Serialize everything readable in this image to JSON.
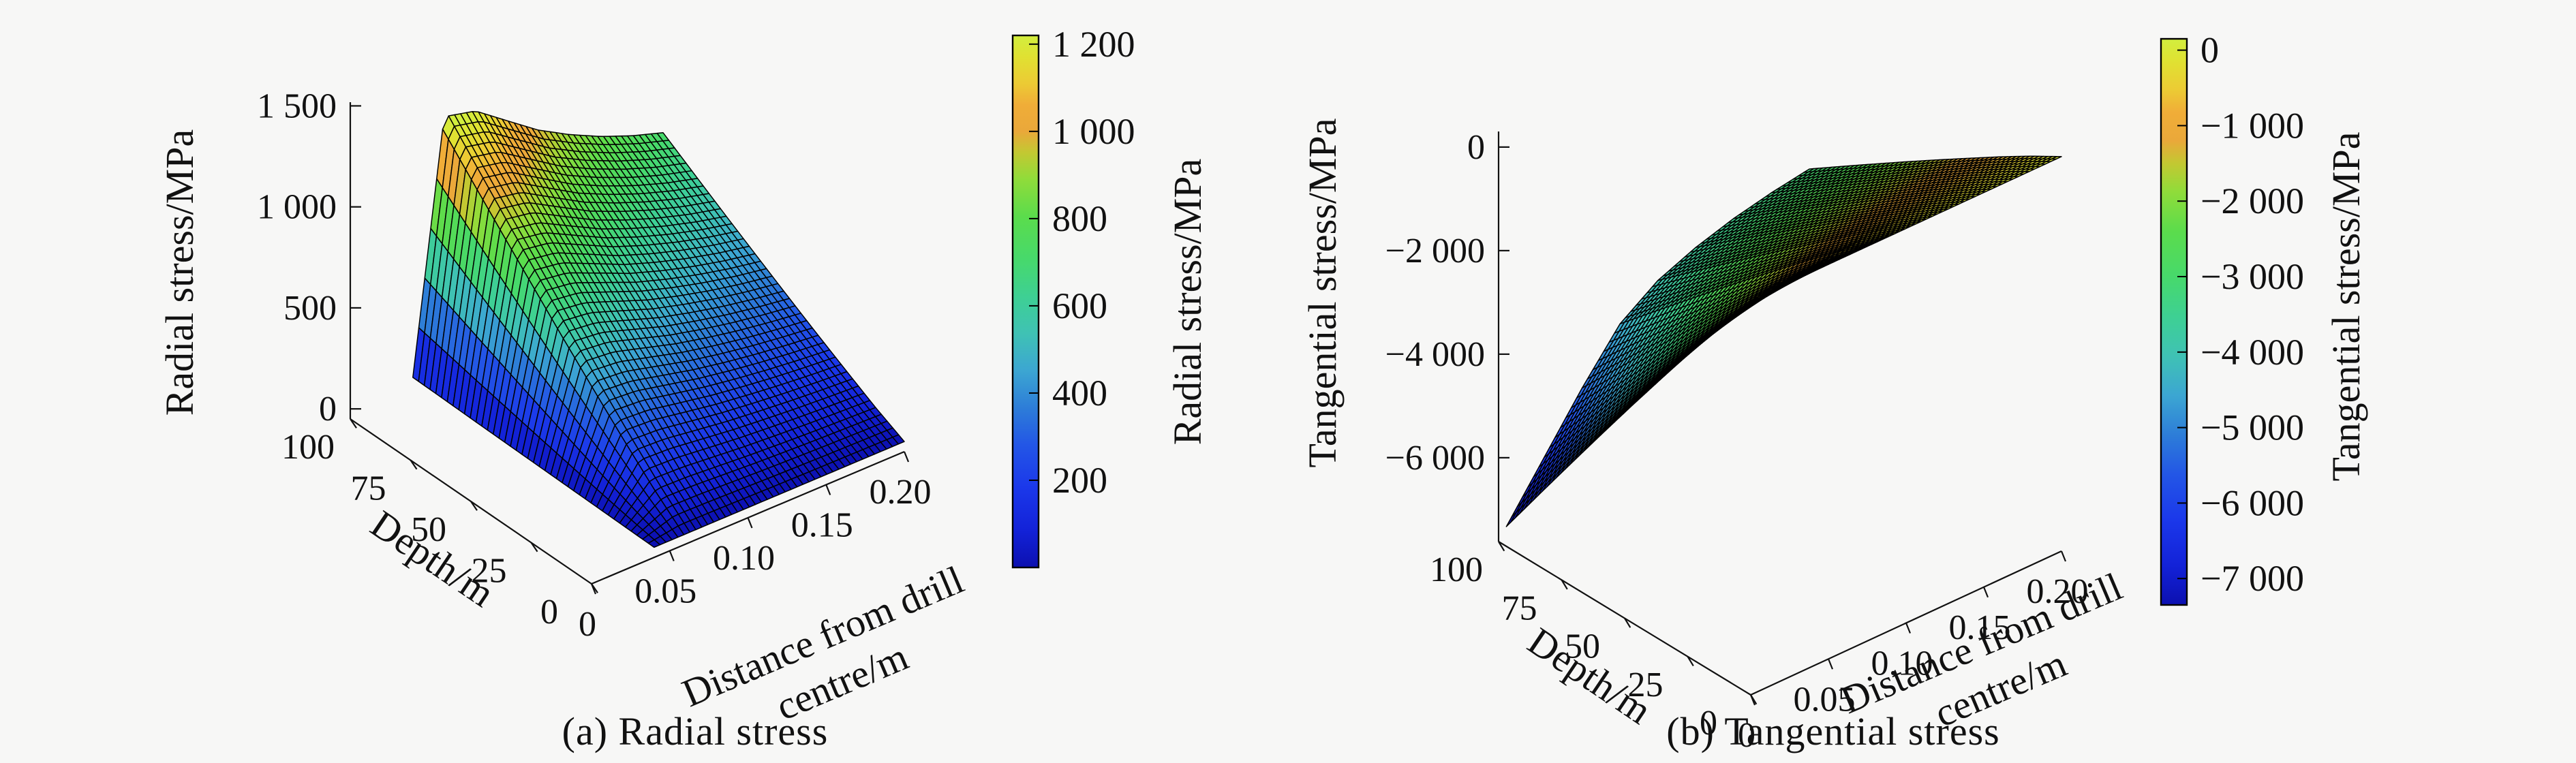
{
  "figure": {
    "background": "#f7f7f6",
    "text_color": "#111111",
    "captions": {
      "a": "(a) Radial stress",
      "b": "(b) Tangential stress"
    }
  },
  "colormap": [
    [
      0.0,
      "#0c10b0"
    ],
    [
      0.07,
      "#1322d8"
    ],
    [
      0.15,
      "#1b38ea"
    ],
    [
      0.23,
      "#2356e6"
    ],
    [
      0.3,
      "#2d7dd8"
    ],
    [
      0.37,
      "#3ca6d2"
    ],
    [
      0.44,
      "#3fc2b4"
    ],
    [
      0.51,
      "#3ed093"
    ],
    [
      0.58,
      "#47d96b"
    ],
    [
      0.66,
      "#5bdc4c"
    ],
    [
      0.73,
      "#90dc3a"
    ],
    [
      0.78,
      "#c3c832"
    ],
    [
      0.82,
      "#eaa83a"
    ],
    [
      0.87,
      "#f0ad38"
    ],
    [
      0.91,
      "#eccb34"
    ],
    [
      0.96,
      "#e0e132"
    ],
    [
      1.0,
      "#d2ee3e"
    ]
  ],
  "chart_data": [
    {
      "id": "radial_stress",
      "type": "surface3d",
      "caption": "(a) Radial stress",
      "axes": {
        "x": {
          "label_lines": [
            "Distance from drill",
            "centre/m"
          ],
          "tick_labels": [
            "0",
            "0.05",
            "0.10",
            "0.15",
            "0.20"
          ],
          "tick_values": [
            0,
            0.05,
            0.1,
            0.15,
            0.2
          ],
          "range": [
            0,
            0.2
          ]
        },
        "y": {
          "label": "Depth/m",
          "tick_labels": [
            "100",
            "75",
            "50",
            "25",
            "0"
          ],
          "tick_values": [
            100,
            75,
            50,
            25,
            0
          ],
          "range": [
            0,
            100
          ]
        },
        "z": {
          "label": "Radial stress/MPa",
          "tick_labels": [
            "0",
            "500",
            "1 000",
            "1 500"
          ],
          "tick_values": [
            0,
            500,
            1000,
            1500
          ],
          "range": [
            0,
            1500
          ]
        }
      },
      "surface": {
        "distance_m": [
          0.04,
          0.06,
          0.08,
          0.1,
          0.12,
          0.14,
          0.16,
          0.18,
          0.2
        ],
        "depth_m": [
          0,
          12.5,
          25,
          37.5,
          50,
          62.5,
          75,
          87.5,
          100
        ],
        "values_mpa": [
          [
            0,
            0,
            0,
            0,
            0,
            0,
            0,
            0,
            0
          ],
          [
            3,
            132,
            128,
            116,
            104,
            95,
            87,
            81,
            75
          ],
          [
            6,
            280,
            272,
            246,
            221,
            202,
            185,
            171,
            160
          ],
          [
            9,
            434,
            421,
            382,
            343,
            312,
            286,
            265,
            247
          ],
          [
            12,
            591,
            573,
            520,
            467,
            426,
            390,
            361,
            337
          ],
          [
            15,
            753,
            730,
            663,
            595,
            542,
            497,
            459,
            429
          ],
          [
            18,
            916,
            889,
            806,
            724,
            660,
            605,
            559,
            522
          ],
          [
            22,
            1082,
            1050,
            952,
            855,
            779,
            714,
            660,
            617
          ],
          [
            25,
            1250,
            1213,
            1100,
            988,
            900,
            825,
            763,
            713
          ]
        ]
      },
      "colorbar": {
        "label": "Radial stress/MPa",
        "tick_labels": [
          "1 200",
          "1 000",
          "800",
          "600",
          "400",
          "200"
        ],
        "tick_values": [
          1200,
          1000,
          800,
          600,
          400,
          200
        ],
        "range": [
          0,
          1220
        ]
      }
    },
    {
      "id": "tangential_stress",
      "type": "surface3d",
      "caption": "(b) Tangential stress",
      "axes": {
        "x": {
          "label_lines": [
            "Distance from drill",
            "centre/m"
          ],
          "tick_labels": [
            "0",
            "0.05",
            "0.10",
            "0.15",
            "0.20"
          ],
          "tick_values": [
            0,
            0.05,
            0.1,
            0.15,
            0.2
          ],
          "range": [
            0,
            0.2
          ]
        },
        "y": {
          "label": "Depth/m",
          "tick_labels": [
            "100",
            "75",
            "50",
            "25",
            "0"
          ],
          "tick_values": [
            100,
            75,
            50,
            25,
            0
          ],
          "range": [
            0,
            100
          ]
        },
        "z": {
          "label": "Tangential stress/MPa",
          "tick_labels": [
            "0",
            "−2 000",
            "−4 000",
            "−6 000"
          ],
          "tick_values": [
            0,
            -2000,
            -4000,
            -6000
          ],
          "range": [
            -7400,
            0
          ]
        }
      },
      "surface": {
        "distance_m": [
          0.005,
          0.029,
          0.054,
          0.078,
          0.102,
          0.127,
          0.151,
          0.176,
          0.2
        ],
        "depth_m": [
          0,
          12.5,
          25,
          37.5,
          50,
          62.5,
          75,
          87.5,
          100
        ],
        "values_mpa": [
          [
            0,
            0,
            0,
            0,
            0,
            0,
            0,
            0,
            0
          ],
          [
            -835,
            -723,
            -610,
            -508,
            -452,
            -418,
            -393,
            -375,
            -361
          ],
          [
            -1723,
            -1490,
            -1257,
            -1048,
            -931,
            -861,
            -810,
            -773,
            -745
          ],
          [
            -2646,
            -2289,
            -1931,
            -1609,
            -1430,
            -1323,
            -1244,
            -1187,
            -1144
          ],
          [
            -3574,
            -3091,
            -2608,
            -2173,
            -1932,
            -1787,
            -1681,
            -1604,
            -1546
          ],
          [
            -4517,
            -3907,
            -3296,
            -2747,
            -2442,
            -2258,
            -2124,
            -2027,
            -1953
          ],
          [
            -5471,
            -4732,
            -3992,
            -3327,
            -2957,
            -2735,
            -2573,
            -2454,
            -2366
          ],
          [
            -6432,
            -5563,
            -4694,
            -3911,
            -3477,
            -3216,
            -3025,
            -2886,
            -2781
          ],
          [
            -7400,
            -6400,
            -5400,
            -4500,
            -4000,
            -3700,
            -3480,
            -3320,
            -3200
          ]
        ]
      },
      "colorbar": {
        "label": "Tangential stress/MPa",
        "tick_labels": [
          "0",
          "−1 000",
          "−2 000",
          "−3 000",
          "−4 000",
          "−5 000",
          "−6 000",
          "−7 000"
        ],
        "tick_values": [
          0,
          -1000,
          -2000,
          -3000,
          -4000,
          -5000,
          -6000,
          -7000
        ],
        "range": [
          -7350,
          150
        ]
      }
    }
  ]
}
